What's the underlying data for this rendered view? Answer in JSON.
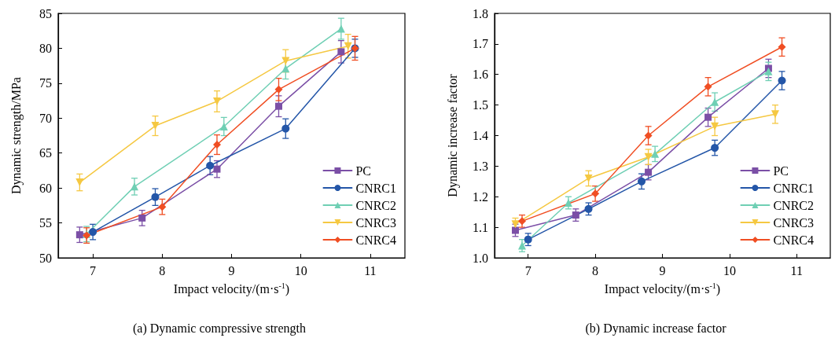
{
  "chart_data": [
    {
      "type": "line",
      "title": "(a) Dynamic compressive strength",
      "xlabel": "Impact velocity/(m·s$^{-1}$)",
      "ylabel": "Dynamic strength/MPa",
      "xlim": [
        6.5,
        11.5
      ],
      "xticks": [
        7,
        8,
        9,
        10,
        11
      ],
      "ylim": [
        50,
        85
      ],
      "yticks": [
        50,
        55,
        60,
        65,
        70,
        75,
        80,
        85
      ],
      "grid": false,
      "legend": "bottom right",
      "series": [
        {
          "name": "PC",
          "color": "#7b4fa6",
          "marker": "square",
          "x": [
            6.81,
            7.71,
            8.79,
            9.68,
            10.58
          ],
          "values": [
            53.3,
            55.7,
            62.7,
            71.7,
            79.5
          ],
          "errors": [
            1.1,
            1.1,
            1.2,
            1.5,
            1.6
          ]
        },
        {
          "name": "CNRC1",
          "color": "#2456a8",
          "marker": "circle",
          "x": [
            7.0,
            7.9,
            8.69,
            9.78,
            10.78
          ],
          "values": [
            53.7,
            58.7,
            63.2,
            68.5,
            80.0
          ],
          "errors": [
            1.1,
            1.2,
            1.3,
            1.4,
            1.3
          ]
        },
        {
          "name": "CNRC2",
          "color": "#6fcfb4",
          "marker": "triangle",
          "x": [
            6.91,
            7.6,
            8.89,
            9.78,
            10.58
          ],
          "values": [
            53.4,
            60.2,
            68.8,
            77.1,
            82.8
          ],
          "errors": [
            1.1,
            1.2,
            1.3,
            1.5,
            1.5
          ]
        },
        {
          "name": "CNRC3",
          "color": "#f5c842",
          "marker": "triangle-down",
          "x": [
            6.81,
            7.9,
            8.79,
            9.78,
            10.68
          ],
          "values": [
            60.8,
            68.9,
            72.4,
            78.2,
            80.3
          ],
          "errors": [
            1.2,
            1.4,
            1.5,
            1.6,
            1.7
          ]
        },
        {
          "name": "CNRC4",
          "color": "#f04e23",
          "marker": "diamond",
          "x": [
            6.91,
            8.0,
            8.79,
            9.68,
            10.78
          ],
          "values": [
            53.2,
            57.3,
            66.2,
            74.1,
            80.0
          ],
          "errors": [
            1.1,
            1.1,
            1.4,
            1.6,
            1.7
          ]
        }
      ]
    },
    {
      "type": "line",
      "title": "(b) Dynamic increase factor",
      "xlabel": "Impact velocity/(m·s$^{-1}$)",
      "ylabel": "Dynamic increase factor",
      "xlim": [
        6.5,
        11.5
      ],
      "xticks": [
        7,
        8,
        9,
        10,
        11
      ],
      "ylim": [
        1.0,
        1.8
      ],
      "yticks": [
        {
          "value": 1.0,
          "label": "1.0"
        },
        1.1,
        1.2,
        1.3,
        1.4,
        1.5,
        1.6,
        1.7,
        {
          "value": 1.8,
          "label": "1.8"
        }
      ],
      "grid": false,
      "legend": "bottom right",
      "series": [
        {
          "name": "PC",
          "color": "#7b4fa6",
          "marker": "square",
          "x": [
            6.81,
            7.71,
            8.79,
            9.68,
            10.58
          ],
          "values": [
            1.09,
            1.14,
            1.28,
            1.46,
            1.62
          ],
          "errors": [
            0.02,
            0.02,
            0.025,
            0.03,
            0.03
          ]
        },
        {
          "name": "CNRC1",
          "color": "#2456a8",
          "marker": "circle",
          "x": [
            7.0,
            7.9,
            8.69,
            9.78,
            10.78
          ],
          "values": [
            1.06,
            1.16,
            1.25,
            1.36,
            1.58
          ],
          "errors": [
            0.02,
            0.02,
            0.025,
            0.025,
            0.03
          ]
        },
        {
          "name": "CNRC2",
          "color": "#6fcfb4",
          "marker": "triangle",
          "x": [
            6.91,
            7.6,
            8.89,
            9.78,
            10.58
          ],
          "values": [
            1.04,
            1.18,
            1.34,
            1.51,
            1.61
          ],
          "errors": [
            0.02,
            0.02,
            0.025,
            0.03,
            0.03
          ]
        },
        {
          "name": "CNRC3",
          "color": "#f5c842",
          "marker": "triangle-down",
          "x": [
            6.81,
            7.9,
            8.79,
            9.78,
            10.68
          ],
          "values": [
            1.11,
            1.26,
            1.33,
            1.43,
            1.47
          ],
          "errors": [
            0.02,
            0.025,
            0.025,
            0.03,
            0.03
          ]
        },
        {
          "name": "CNRC4",
          "color": "#f04e23",
          "marker": "diamond",
          "x": [
            6.91,
            8.0,
            8.79,
            9.68,
            10.78
          ],
          "values": [
            1.12,
            1.21,
            1.4,
            1.56,
            1.69
          ],
          "errors": [
            0.02,
            0.025,
            0.03,
            0.03,
            0.03
          ]
        }
      ]
    }
  ]
}
